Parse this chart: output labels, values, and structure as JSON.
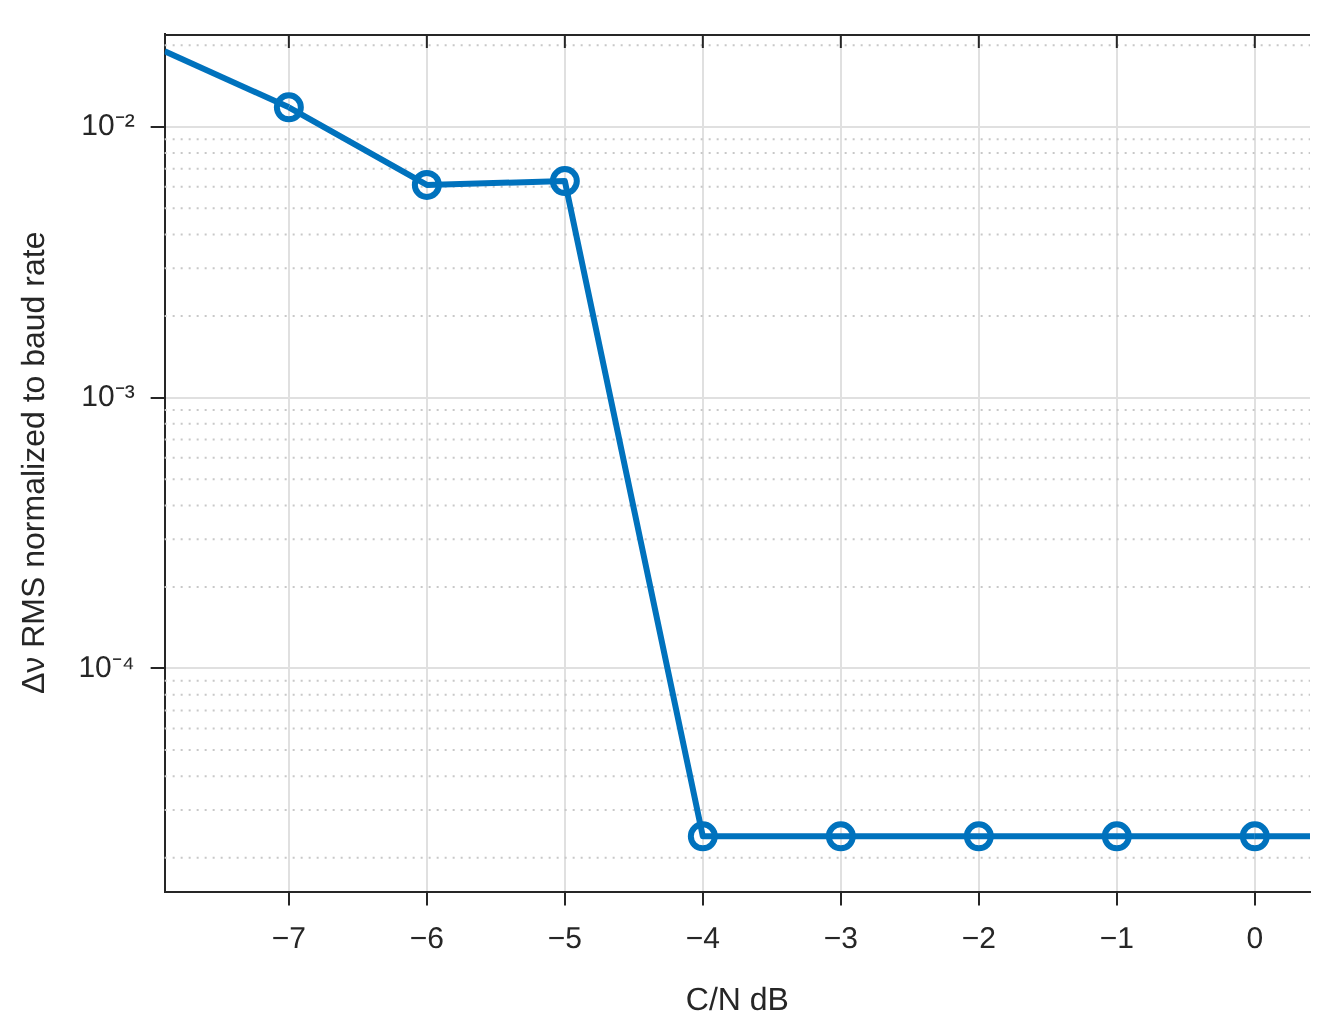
{
  "chart_data": {
    "type": "line",
    "xlabel": "C/N dB",
    "ylabel": "Δν RMS normalized to baud rate",
    "log": "y",
    "grid": true,
    "marker": "circle",
    "line_style": "solid",
    "xlim": [
      -7.9,
      0.4
    ],
    "xticks": [
      -7,
      -6,
      -5,
      -4,
      -3,
      -2,
      -1,
      0
    ],
    "ylim": [
      1.5e-05,
      0.022
    ],
    "yticks": [
      {
        "value": 0.0001,
        "label": "10⁻⁴"
      },
      {
        "value": 0.001,
        "label": "10⁻³"
      },
      {
        "value": 0.01,
        "label": "10⁻²"
      }
    ],
    "series": [
      {
        "color": "#0072bd",
        "x": [
          -7,
          -6,
          -5,
          -4,
          -3,
          -2,
          -1,
          0
        ],
        "values": [
          0.0118,
          0.0061,
          0.0063,
          2.4e-05,
          2.4e-05,
          2.4e-05,
          2.4e-05,
          2.4e-05
        ]
      },
      {
        "color": "#0072bd",
        "marker": "none",
        "x": [
          -7.9,
          -7
        ],
        "values": [
          0.019,
          0.0118
        ]
      },
      {
        "color": "#0072bd",
        "marker": "none",
        "x": [
          0,
          0.4
        ],
        "values": [
          2.4e-05,
          2.4e-05
        ]
      }
    ]
  }
}
